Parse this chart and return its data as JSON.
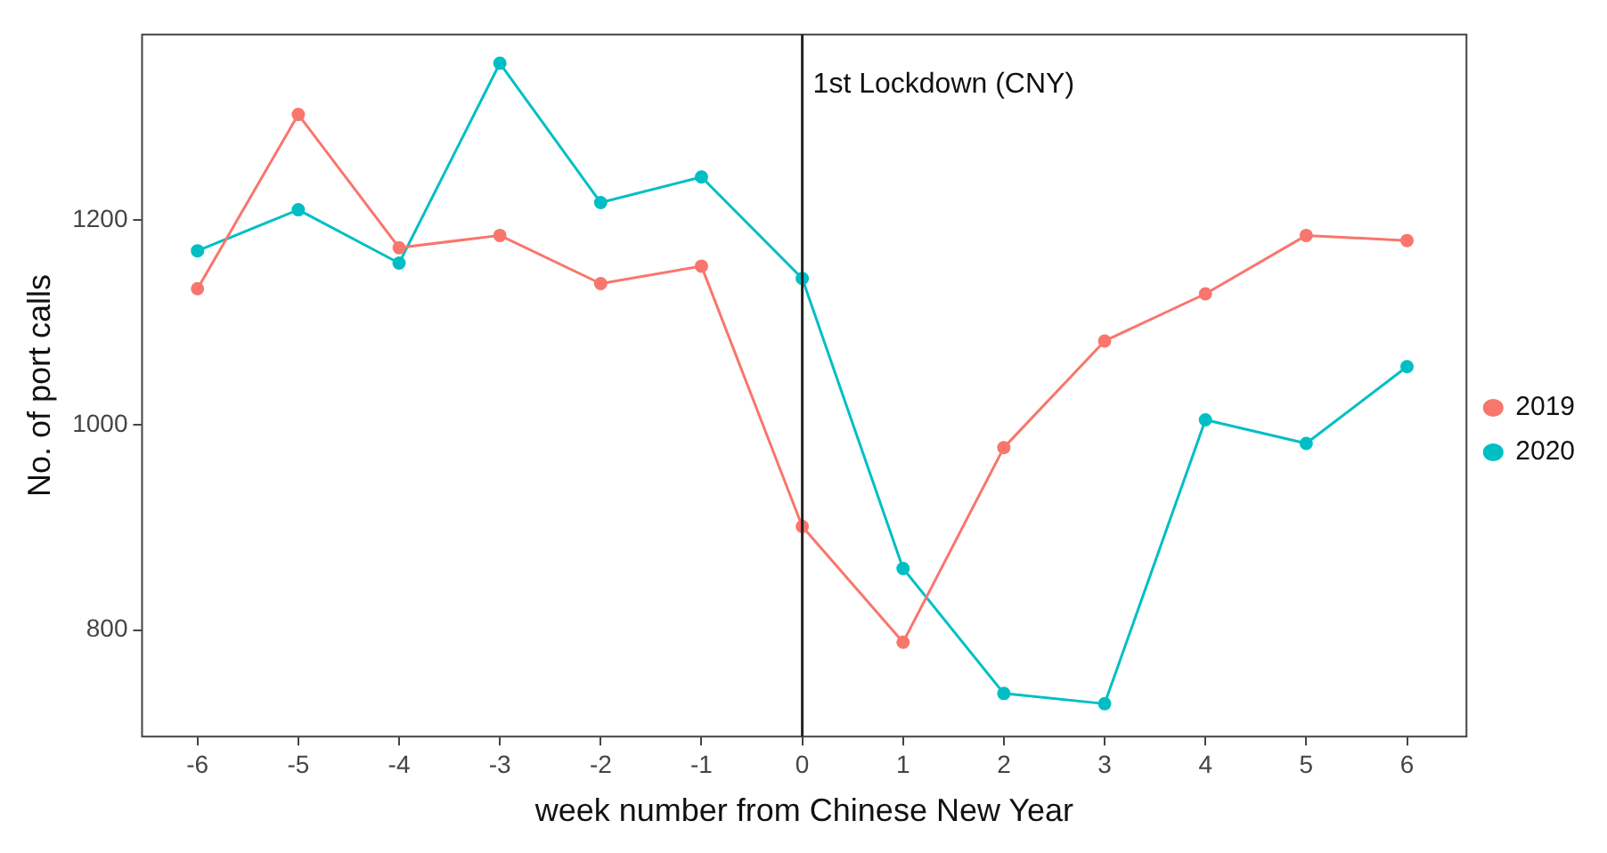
{
  "chart_data": {
    "type": "line",
    "xlabel": "week number from Chinese New Year",
    "ylabel": "No. of port calls",
    "x": [
      -6,
      -5,
      -4,
      -3,
      -2,
      -1,
      0,
      1,
      2,
      3,
      4,
      5,
      6
    ],
    "series": [
      {
        "name": "2019",
        "color": "#f8766d",
        "values": [
          1133,
          1303,
          1173,
          1185,
          1138,
          1155,
          901,
          788,
          978,
          1082,
          1128,
          1185,
          1180
        ]
      },
      {
        "name": "2020",
        "color": "#00bfc4",
        "values": [
          1170,
          1210,
          1158,
          1353,
          1217,
          1242,
          1143,
          860,
          738,
          728,
          1005,
          982,
          1057
        ]
      }
    ],
    "xlim": [
      -6.55,
      6.59
    ],
    "xticks": [
      -6,
      -5,
      -4,
      -3,
      -2,
      -1,
      0,
      1,
      2,
      3,
      4,
      5,
      6
    ],
    "ylim": [
      696,
      1381
    ],
    "yticks": [
      800,
      1000,
      1200
    ],
    "ref_lines": [
      {
        "axis": "x",
        "value": 0,
        "label": "1st Lockdown (CNY)",
        "color": "#222222"
      }
    ],
    "grid": false,
    "legend": "right",
    "marker": "circle",
    "line_style": "solid"
  }
}
